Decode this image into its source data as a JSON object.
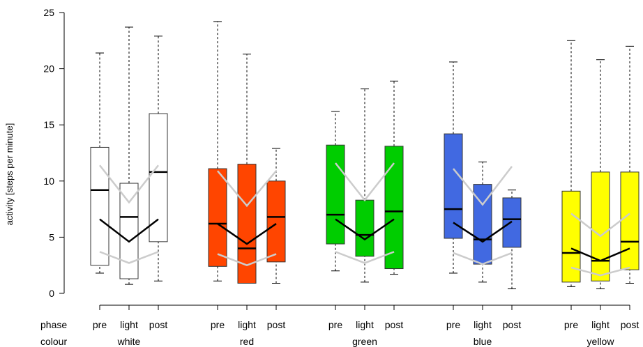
{
  "chart_data": {
    "type": "boxplot",
    "ylabel": "activity [steps per minute]",
    "ylim": [
      0,
      25
    ],
    "yticks": [
      0,
      5,
      10,
      15,
      20,
      25
    ],
    "row_labels": {
      "phase": "phase",
      "colour": "colour"
    },
    "groups": [
      {
        "colour": "white",
        "fill": "#ffffff",
        "boxes": [
          {
            "phase": "pre",
            "min": 1.8,
            "q1": 2.5,
            "median": 9.2,
            "q3": 13.0,
            "max": 21.4
          },
          {
            "phase": "light",
            "min": 0.8,
            "q1": 1.3,
            "median": 6.8,
            "q3": 9.8,
            "max": 23.7
          },
          {
            "phase": "post",
            "min": 1.1,
            "q1": 4.6,
            "median": 10.8,
            "q3": 16.0,
            "max": 22.9
          }
        ],
        "trend_lines": [
          {
            "role": "upper",
            "color": "#cccccc",
            "values": [
              11.4,
              8.1,
              11.4
            ]
          },
          {
            "role": "mean",
            "color": "#000000",
            "values": [
              6.6,
              4.6,
              6.6
            ]
          },
          {
            "role": "lower",
            "color": "#cccccc",
            "values": [
              3.7,
              2.7,
              3.7
            ]
          }
        ]
      },
      {
        "colour": "red",
        "fill": "#ff4500",
        "boxes": [
          {
            "phase": "pre",
            "min": 1.1,
            "q1": 2.4,
            "median": 6.2,
            "q3": 11.1,
            "max": 24.2
          },
          {
            "phase": "light",
            "min": 0.9,
            "q1": 0.9,
            "median": 4.0,
            "q3": 11.5,
            "max": 21.3
          },
          {
            "phase": "post",
            "min": 0.9,
            "q1": 2.8,
            "median": 6.8,
            "q3": 10.0,
            "max": 12.9
          }
        ],
        "trend_lines": [
          {
            "role": "upper",
            "color": "#cccccc",
            "values": [
              10.9,
              7.8,
              10.9
            ]
          },
          {
            "role": "mean",
            "color": "#000000",
            "values": [
              6.2,
              4.4,
              6.2
            ]
          },
          {
            "role": "lower",
            "color": "#cccccc",
            "values": [
              3.5,
              2.5,
              3.5
            ]
          }
        ]
      },
      {
        "colour": "green",
        "fill": "#00cd00",
        "boxes": [
          {
            "phase": "pre",
            "min": 2.0,
            "q1": 4.4,
            "median": 7.0,
            "q3": 13.2,
            "max": 16.2
          },
          {
            "phase": "light",
            "min": 1.0,
            "q1": 3.3,
            "median": 5.2,
            "q3": 8.3,
            "max": 18.2
          },
          {
            "phase": "post",
            "min": 1.7,
            "q1": 2.2,
            "median": 7.3,
            "q3": 13.1,
            "max": 18.9
          }
        ],
        "trend_lines": [
          {
            "role": "upper",
            "color": "#cccccc",
            "values": [
              11.6,
              8.3,
              11.6
            ]
          },
          {
            "role": "mean",
            "color": "#000000",
            "values": [
              6.6,
              4.8,
              6.6
            ]
          },
          {
            "role": "lower",
            "color": "#cccccc",
            "values": [
              3.7,
              2.7,
              3.7
            ]
          }
        ]
      },
      {
        "colour": "blue",
        "fill": "#4169e1",
        "boxes": [
          {
            "phase": "pre",
            "min": 1.8,
            "q1": 4.9,
            "median": 7.5,
            "q3": 14.2,
            "max": 20.6
          },
          {
            "phase": "light",
            "min": 1.0,
            "q1": 2.6,
            "median": 4.8,
            "q3": 9.7,
            "max": 11.7
          },
          {
            "phase": "post",
            "min": 0.4,
            "q1": 4.1,
            "median": 6.6,
            "q3": 8.5,
            "max": 9.2
          }
        ],
        "trend_lines": [
          {
            "role": "upper",
            "color": "#cccccc",
            "values": [
              11.1,
              7.9,
              11.3
            ]
          },
          {
            "role": "mean",
            "color": "#000000",
            "values": [
              6.3,
              4.6,
              6.4
            ]
          },
          {
            "role": "lower",
            "color": "#cccccc",
            "values": [
              3.6,
              2.6,
              3.6
            ]
          }
        ]
      },
      {
        "colour": "yellow",
        "fill": "#ffff00",
        "boxes": [
          {
            "phase": "pre",
            "min": 0.6,
            "q1": 1.0,
            "median": 3.6,
            "q3": 9.1,
            "max": 22.5
          },
          {
            "phase": "light",
            "min": 0.4,
            "q1": 1.1,
            "median": 2.9,
            "q3": 10.8,
            "max": 20.8
          },
          {
            "phase": "post",
            "min": 0.9,
            "q1": 2.1,
            "median": 4.6,
            "q3": 10.8,
            "max": 22.0
          }
        ],
        "trend_lines": [
          {
            "role": "upper",
            "color": "#cccccc",
            "values": [
              7.1,
              5.1,
              7.1
            ]
          },
          {
            "role": "mean",
            "color": "#000000",
            "values": [
              4.0,
              2.9,
              4.0
            ]
          },
          {
            "role": "lower",
            "color": "#cccccc",
            "values": [
              2.3,
              1.6,
              2.3
            ]
          }
        ]
      }
    ]
  }
}
